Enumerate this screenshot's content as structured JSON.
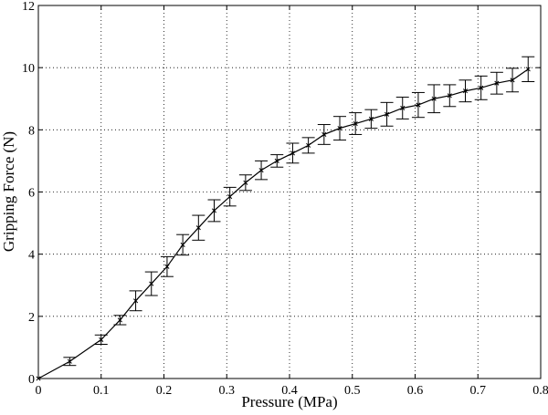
{
  "chart_data": {
    "type": "line",
    "title": "",
    "xlabel": "Pressure (MPa)",
    "ylabel": "Gripping Force (N)",
    "xlim": [
      0,
      0.8
    ],
    "ylim": [
      0,
      12
    ],
    "xticks": [
      0,
      0.1,
      0.2,
      0.3,
      0.4,
      0.5,
      0.6,
      0.7,
      0.8
    ],
    "xtick_labels": [
      "0",
      "0.1",
      "0.2",
      "0.3",
      "0.4",
      "0.5",
      "0.6",
      "0.7",
      "0.8"
    ],
    "yticks": [
      0,
      2,
      4,
      6,
      8,
      10,
      12
    ],
    "ytick_labels": [
      "0",
      "2",
      "4",
      "6",
      "8",
      "10",
      "12"
    ],
    "grid": true,
    "grid_style": "dotted",
    "series": [
      {
        "color": "#000000",
        "marker": "x",
        "x": [
          0,
          0.05,
          0.1,
          0.13,
          0.155,
          0.18,
          0.205,
          0.23,
          0.255,
          0.28,
          0.305,
          0.33,
          0.355,
          0.38,
          0.405,
          0.43,
          0.455,
          0.48,
          0.505,
          0.53,
          0.555,
          0.58,
          0.605,
          0.63,
          0.655,
          0.68,
          0.705,
          0.73,
          0.755,
          0.78
        ],
        "y": [
          0,
          0.55,
          1.25,
          1.88,
          2.5,
          3.05,
          3.6,
          4.3,
          4.85,
          5.4,
          5.85,
          6.3,
          6.7,
          7.0,
          7.25,
          7.5,
          7.85,
          8.05,
          8.2,
          8.35,
          8.5,
          8.7,
          8.8,
          9.0,
          9.1,
          9.25,
          9.35,
          9.5,
          9.6,
          9.95
        ],
        "err": [
          0,
          0.13,
          0.15,
          0.15,
          0.32,
          0.38,
          0.32,
          0.33,
          0.4,
          0.35,
          0.3,
          0.25,
          0.3,
          0.2,
          0.32,
          0.25,
          0.32,
          0.38,
          0.35,
          0.3,
          0.38,
          0.35,
          0.4,
          0.45,
          0.35,
          0.35,
          0.38,
          0.35,
          0.38,
          0.4
        ]
      }
    ]
  }
}
